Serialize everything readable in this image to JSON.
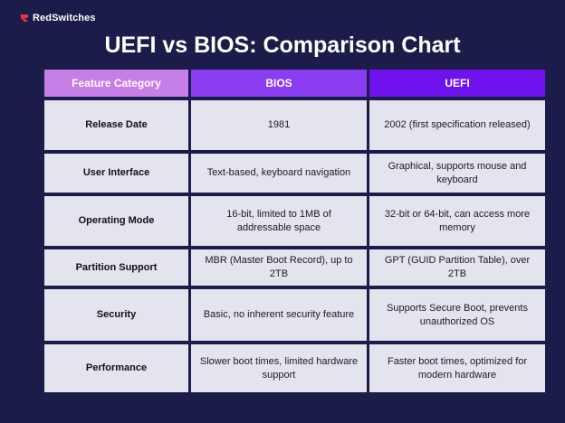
{
  "brand": {
    "name": "RedSwitches",
    "logo_icon": "redswitches-logo-icon",
    "logo_color": "#e8334a"
  },
  "title": "UEFI vs BIOS: Comparison Chart",
  "table": {
    "headers": [
      "Feature Category",
      "BIOS",
      "UEFI"
    ],
    "header_colors": [
      "#c77ee6",
      "#8a3cf0",
      "#7012ee"
    ],
    "rows": [
      {
        "feature": "Release Date",
        "bios": "1981",
        "uefi": "2002 (first specification released)"
      },
      {
        "feature": "User Interface",
        "bios": "Text-based, keyboard navigation",
        "uefi": "Graphical, supports mouse and keyboard"
      },
      {
        "feature": "Operating Mode",
        "bios": "16-bit, limited to 1MB of addressable space",
        "uefi": "32-bit or 64-bit, can access more memory"
      },
      {
        "feature": "Partition Support",
        "bios": "MBR (Master Boot Record), up to 2TB",
        "uefi": "GPT (GUID Partition Table), over 2TB"
      },
      {
        "feature": "Security",
        "bios": "Basic, no inherent security feature",
        "uefi": "Supports Secure Boot, prevents unauthorized OS"
      },
      {
        "feature": "Performance",
        "bios": "Slower boot times, limited hardware support",
        "uefi": "Faster boot times, optimized for modern hardware"
      }
    ]
  }
}
